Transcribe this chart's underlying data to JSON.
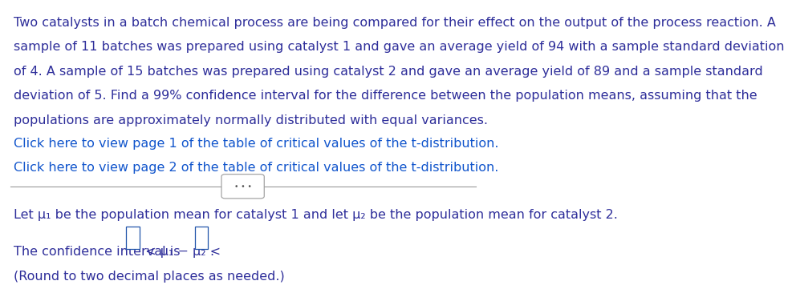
{
  "background_color": "#ffffff",
  "text_color": "#2E2E9A",
  "link_color": "#1155CC",
  "fig_width": 8.77,
  "fig_height": 3.54,
  "paragraph_text": "Two catalysts in a batch chemical process are being compared for their effect on the output of the process reaction. A\nsample of 11 batches was prepared using catalyst 1 and gave an average yield of 94 with a sample standard deviation\nof 4. A sample of 15 batches was prepared using catalyst 2 and gave an average yield of 89 and a sample standard\ndeviation of 5. Find a 99% confidence interval for the difference between the population means, assuming that the\npopulations are approximately normally distributed with equal variances.",
  "link1": "Click here to view page 1 of the table of critical values of the t-distribution.",
  "link2": "Click here to view page 2 of the table of critical values of the t-distribution.",
  "let_text": "Let μ₁ be the population mean for catalyst 1 and let μ₂ be the population mean for catalyst 2.",
  "ci_label": "The confidence interval is ",
  "ci_formula": " < μ₁ − μ₂ < ",
  "round_note": "(Round to two decimal places as needed.)",
  "font_size_main": 11.5
}
